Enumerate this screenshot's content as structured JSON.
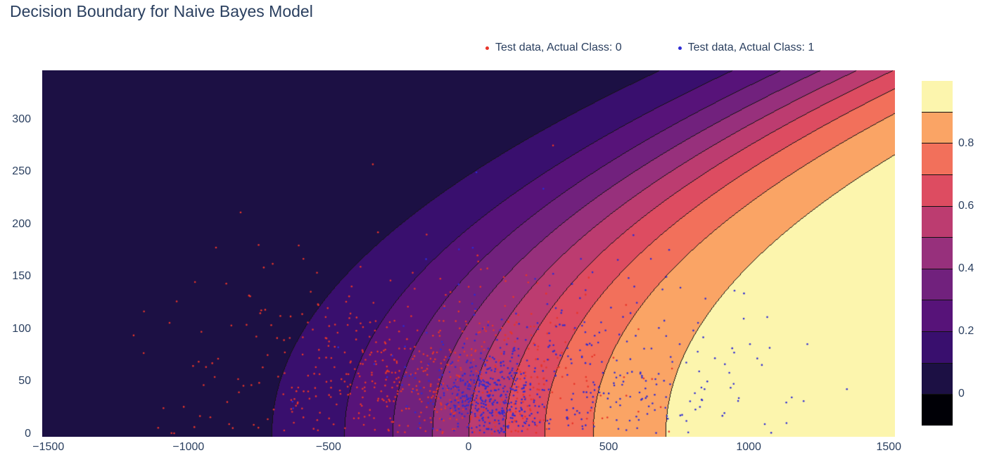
{
  "chart_data": {
    "type": "contour+scatter",
    "title": "Decision Boundary for Naive Bayes Model",
    "axes": {
      "x_range": [
        -1522,
        1522
      ],
      "y_range": [
        -3,
        347
      ],
      "x_tick_values": [
        -1500,
        -1000,
        -500,
        0,
        500,
        1000,
        1500
      ],
      "x_tick_labels": [
        "−1500",
        "−1000",
        "−500",
        "0",
        "500",
        "1000",
        "1500"
      ],
      "y_tick_values": [
        0,
        50,
        100,
        150,
        200,
        250,
        300
      ],
      "y_tick_labels": [
        "0",
        "50",
        "100",
        "150",
        "200",
        "250",
        "300"
      ],
      "grid": false
    },
    "contour": {
      "levels": [
        0,
        0.1,
        0.2,
        0.3,
        0.4,
        0.5,
        0.6,
        0.7,
        0.8,
        0.9,
        1.0
      ],
      "band_colors": [
        "#1c1044",
        "#390f6e",
        "#571379",
        "#71217d",
        "#97307c",
        "#bc3c70",
        "#dd4c61",
        "#f2705b",
        "#faa465",
        "#fcf5ad"
      ],
      "line_color": "#141414",
      "model": {
        "type": "sigmoid-of-parabola",
        "description": "p(x,y) = sigmoid((x - curvature*y^2)/scale)",
        "scale": 320,
        "curvature": 0.0115
      }
    },
    "colorbar": {
      "under_color": "#000006",
      "tick_values": [
        0,
        0.2,
        0.4,
        0.6,
        0.8
      ],
      "tick_labels": [
        "0",
        "0.2",
        "0.4",
        "0.6",
        "0.8"
      ],
      "position": "right"
    },
    "legend": [
      {
        "label": "Test data, Actual Class: 0",
        "color": "#e8352a"
      },
      {
        "label": "Test data, Actual Class: 1",
        "color": "#2e2bd4"
      }
    ],
    "scatter": {
      "seed": 7,
      "marker_radius": 1.3,
      "classes": [
        {
          "name": "test-data-class-0",
          "color": "#e8352a",
          "clusters": [
            {
              "n": 520,
              "cx": -90,
              "cy": 55,
              "sx": 270,
              "sy": 42
            },
            {
              "n": 80,
              "cx": -720,
              "cy": 75,
              "sx": 240,
              "sy": 48
            },
            {
              "n": 12,
              "cx": 0,
              "cy": 170,
              "sx": 260,
              "sy": 45
            }
          ]
        },
        {
          "name": "test-data-class-1",
          "color": "#2e2bd4",
          "clusters": [
            {
              "n": 330,
              "cx": 75,
              "cy": 38,
              "sx": 95,
              "sy": 20
            },
            {
              "n": 330,
              "cx": 380,
              "cy": 55,
              "sx": 340,
              "sy": 42
            },
            {
              "n": 10,
              "cx": 120,
              "cy": 160,
              "sx": 300,
              "sy": 35
            }
          ]
        }
      ]
    },
    "colors": {
      "text": "#2a3f5f",
      "background": "#ffffff"
    }
  }
}
